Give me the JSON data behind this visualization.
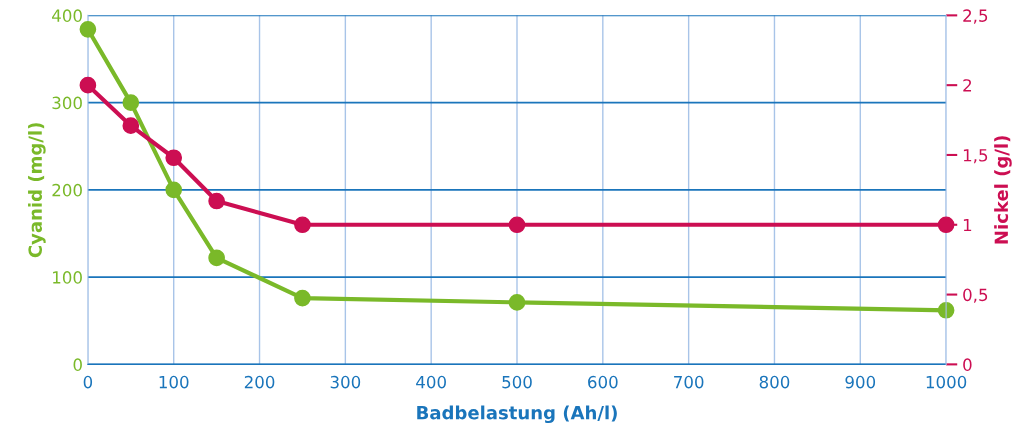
{
  "chart_data": {
    "type": "line",
    "xlabel": "Badbelastung (Ah/l)",
    "ylabel": "Cyanid (mg/l)",
    "y2label": "Nickel (g/l)",
    "x": [
      0,
      50,
      100,
      150,
      250,
      500,
      1000
    ],
    "series": [
      {
        "name": null,
        "color": "#7ab929",
        "values": [
          384,
          300,
          200,
          122,
          76,
          71,
          62
        ]
      },
      {
        "name": null,
        "color": "#cc0e52",
        "axis": "y2",
        "values": [
          2,
          1.71,
          1.48,
          1.17,
          1,
          1,
          1
        ]
      }
    ],
    "xlim": [
      0,
      1000
    ],
    "xticks": [
      0,
      100,
      200,
      300,
      400,
      500,
      600,
      700,
      800,
      900,
      1000
    ],
    "ylim": [
      0,
      400
    ],
    "yticks": [
      0,
      100,
      200,
      300,
      400
    ],
    "y2lim": [
      0,
      2.5
    ],
    "y2ticks": [
      0,
      {
        "value": 0.5,
        "label": "0,5"
      },
      1,
      {
        "value": 1.5,
        "label": "1,5"
      },
      2,
      {
        "value": 2.5,
        "label": "2,5"
      }
    ],
    "grid": true,
    "marker": "circle",
    "line_style": "solid"
  }
}
